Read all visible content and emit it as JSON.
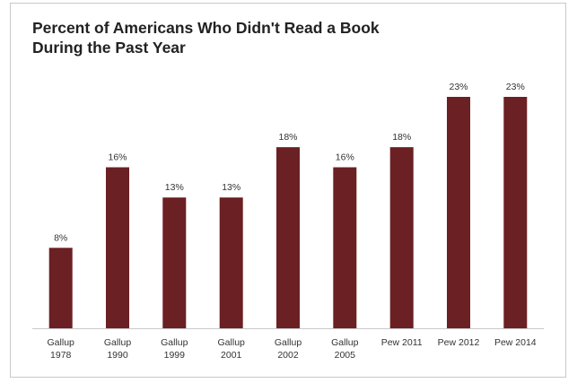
{
  "chart_data": {
    "type": "bar",
    "title": "Percent of Americans Who Didn't Read a Book During the Past Year",
    "title_lines": [
      "Percent of Americans Who Didn't Read a Book",
      "During the Past Year"
    ],
    "categories": [
      [
        "Gallup",
        "1978"
      ],
      [
        "Gallup",
        "1990"
      ],
      [
        "Gallup",
        "1999"
      ],
      [
        "Gallup",
        "2001"
      ],
      [
        "Gallup",
        "2002"
      ],
      [
        "Gallup",
        "2005"
      ],
      [
        "Pew 2011"
      ],
      [
        "Pew 2012"
      ],
      [
        "Pew 2014"
      ]
    ],
    "values": [
      8,
      16,
      13,
      13,
      18,
      16,
      18,
      23,
      23
    ],
    "data_labels": [
      "8%",
      "16%",
      "13%",
      "13%",
      "18%",
      "16%",
      "18%",
      "23%",
      "23%"
    ],
    "xlabel": "",
    "ylabel": "",
    "ylim": [
      0,
      23
    ],
    "grid": false,
    "legend": "none",
    "colors": {
      "bar": "#6b2023",
      "axis": "#c8c8c8",
      "text": "#333333"
    }
  }
}
